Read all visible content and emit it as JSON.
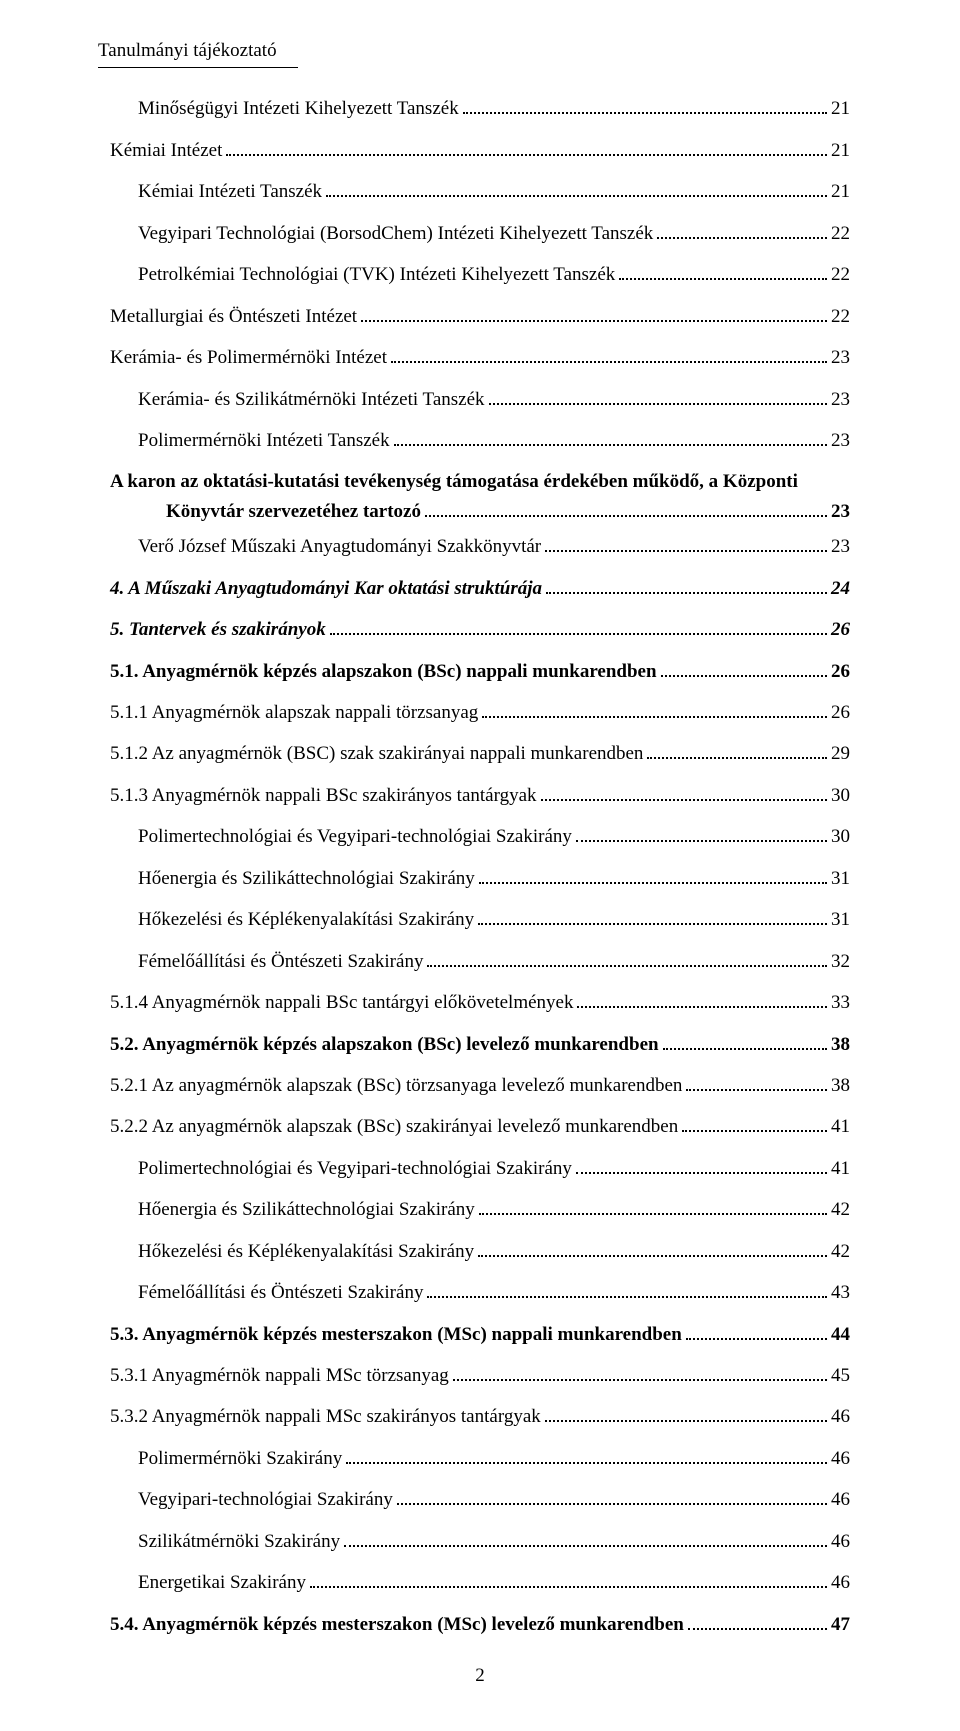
{
  "running_header": "Tanulmányi tájékoztató",
  "toc": [
    {
      "label": "Minőségügyi Intézeti Kihelyezett Tanszék",
      "page": "21",
      "indent": 1,
      "style": ""
    },
    {
      "label": "Kémiai Intézet",
      "page": "21",
      "indent": 0,
      "style": ""
    },
    {
      "label": "Kémiai Intézeti Tanszék",
      "page": "21",
      "indent": 1,
      "style": ""
    },
    {
      "label": "Vegyipari Technológiai (BorsodChem) Intézeti Kihelyezett Tanszék",
      "page": "22",
      "indent": 1,
      "style": ""
    },
    {
      "label": "Petrolkémiai Technológiai (TVK) Intézeti Kihelyezett Tanszék",
      "page": "22",
      "indent": 1,
      "style": ""
    },
    {
      "label": "Metallurgiai és Öntészeti Intézet",
      "page": "22",
      "indent": 0,
      "style": ""
    },
    {
      "label": "Kerámia- és Polimermérnöki Intézet",
      "page": "23",
      "indent": 0,
      "style": ""
    },
    {
      "label": "Kerámia- és Szilikátmérnöki Intézeti Tanszék",
      "page": "23",
      "indent": 1,
      "style": ""
    },
    {
      "label": "Polimermérnöki Intézeti Tanszék",
      "page": "23",
      "indent": 1,
      "style": ""
    }
  ],
  "para": {
    "line1": "A karon az oktatási-kutatási tevékenység támogatása érdekében működő, a Központi",
    "line2_label": "Könyvtár szervezetéhez tartozó",
    "line2_page": "23"
  },
  "toc2": [
    {
      "label": "Verő József Műszaki Anyagtudományi Szakkönyvtár",
      "page": "23",
      "indent": 1,
      "style": ""
    },
    {
      "label": "4. A Műszaki Anyagtudományi Kar oktatási struktúrája",
      "page": "24",
      "indent": 0,
      "style": "bolditalic"
    },
    {
      "label": "5. Tantervek és szakirányok",
      "page": "26",
      "indent": 0,
      "style": "bolditalic"
    },
    {
      "label": "5.1. Anyagmérnök képzés alapszakon (BSc) nappali munkarendben",
      "page": "26",
      "indent": 0,
      "style": "bold"
    },
    {
      "label": "5.1.1 Anyagmérnök alapszak nappali törzsanyag",
      "page": "26",
      "indent": 0,
      "style": ""
    },
    {
      "label": "5.1.2 Az anyagmérnök (BSC) szak szakirányai nappali munkarendben",
      "page": "29",
      "indent": 0,
      "style": ""
    },
    {
      "label": "5.1.3 Anyagmérnök nappali BSc szakirányos tantárgyak",
      "page": "30",
      "indent": 0,
      "style": ""
    },
    {
      "label": "Polimertechnológiai és Vegyipari-technológiai Szakirány",
      "page": "30",
      "indent": 1,
      "style": ""
    },
    {
      "label": "Hőenergia és Szilikáttechnológiai Szakirány",
      "page": "31",
      "indent": 1,
      "style": ""
    },
    {
      "label": "Hőkezelési és Képlékenyalakítási Szakirány",
      "page": "31",
      "indent": 1,
      "style": ""
    },
    {
      "label": "Fémelőállítási és Öntészeti Szakirány",
      "page": "32",
      "indent": 1,
      "style": ""
    },
    {
      "label": "5.1.4 Anyagmérnök nappali BSc tantárgyi előkövetelmények",
      "page": "33",
      "indent": 0,
      "style": ""
    },
    {
      "label": "5.2. Anyagmérnök képzés alapszakon (BSc) levelező munkarendben",
      "page": "38",
      "indent": 0,
      "style": "bold"
    },
    {
      "label": "5.2.1 Az anyagmérnök alapszak (BSc) törzsanyaga levelező munkarendben",
      "page": "38",
      "indent": 0,
      "style": ""
    },
    {
      "label": "5.2.2 Az anyagmérnök alapszak (BSc) szakirányai levelező munkarendben",
      "page": "41",
      "indent": 0,
      "style": ""
    },
    {
      "label": "Polimertechnológiai és Vegyipari-technológiai Szakirány",
      "page": "41",
      "indent": 1,
      "style": ""
    },
    {
      "label": "Hőenergia és Szilikáttechnológiai Szakirány",
      "page": "42",
      "indent": 1,
      "style": ""
    },
    {
      "label": "Hőkezelési és Képlékenyalakítási Szakirány",
      "page": "42",
      "indent": 1,
      "style": ""
    },
    {
      "label": "Fémelőállítási és Öntészeti Szakirány",
      "page": "43",
      "indent": 1,
      "style": ""
    },
    {
      "label": "5.3. Anyagmérnök képzés mesterszakon (MSc) nappali munkarendben",
      "page": "44",
      "indent": 0,
      "style": "bold"
    },
    {
      "label": "5.3.1 Anyagmérnök nappali MSc törzsanyag",
      "page": "45",
      "indent": 0,
      "style": ""
    },
    {
      "label": "5.3.2 Anyagmérnök nappali MSc szakirányos tantárgyak",
      "page": "46",
      "indent": 0,
      "style": ""
    },
    {
      "label": "Polimermérnöki Szakirány",
      "page": "46",
      "indent": 1,
      "style": ""
    },
    {
      "label": "Vegyipari-technológiai Szakirány",
      "page": "46",
      "indent": 1,
      "style": ""
    },
    {
      "label": "Szilikátmérnöki Szakirány",
      "page": "46",
      "indent": 1,
      "style": ""
    },
    {
      "label": "Energetikai Szakirány",
      "page": "46",
      "indent": 1,
      "style": ""
    },
    {
      "label": "5.4. Anyagmérnök képzés mesterszakon (MSc) levelező munkarendben",
      "page": "47",
      "indent": 0,
      "style": "bold"
    }
  ],
  "page_number": "2"
}
